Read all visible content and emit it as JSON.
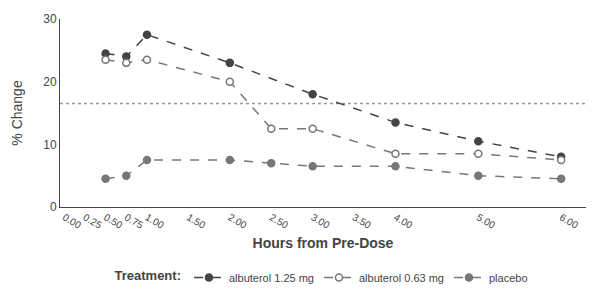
{
  "chart_data": {
    "type": "line",
    "x_label": "Hours from Pre-Dose",
    "y_label": "% Change",
    "legend_title": "Treatment:",
    "legend": "bottom",
    "grid": false,
    "series": [
      {
        "name": "albuterol 1.25 mg",
        "color": "#444444",
        "marker": "circle",
        "line_style": "dashed",
        "x": [
          0.5,
          0.75,
          1.0,
          2.0,
          3.0,
          4.0,
          5.0,
          6.0
        ],
        "values": [
          24.5,
          24.0,
          27.5,
          23.0,
          18.0,
          13.5,
          10.5,
          8.0
        ]
      },
      {
        "name": "albuterol 0.63 mg",
        "color": "#777777",
        "marker": "open circle",
        "line_style": "dashed",
        "x": [
          0.5,
          0.75,
          1.0,
          2.0,
          2.5,
          3.0,
          4.0,
          5.0,
          6.0
        ],
        "values": [
          23.5,
          23.0,
          23.5,
          20.0,
          12.5,
          12.5,
          8.5,
          8.5,
          7.5
        ]
      },
      {
        "name": "placebo",
        "color": "#777777",
        "marker": "circle",
        "line_style": "dashed",
        "x": [
          0.5,
          0.75,
          1.0,
          2.0,
          2.5,
          3.0,
          4.0,
          5.0,
          6.0
        ],
        "values": [
          4.5,
          5.0,
          7.5,
          7.5,
          7.0,
          6.5,
          6.5,
          5.0,
          4.5
        ]
      }
    ],
    "hline": {
      "y": 16.5,
      "color": "#999999",
      "line_style": "dotted"
    },
    "xlim": [
      -0.05,
      6.3
    ],
    "ylim": [
      0,
      30
    ],
    "xticks": [
      {
        "value": 0,
        "label": "0.00"
      },
      {
        "value": 0.25,
        "label": "0.25"
      },
      {
        "value": 0.5,
        "label": "0.50"
      },
      {
        "value": 0.75,
        "label": "0.75"
      },
      {
        "value": 1,
        "label": "1.00"
      },
      {
        "value": 1.5,
        "label": "1.50"
      },
      {
        "value": 2,
        "label": "2.00"
      },
      {
        "value": 2.5,
        "label": "2.50"
      },
      {
        "value": 3,
        "label": "3.00"
      },
      {
        "value": 3.5,
        "label": "3.50"
      },
      {
        "value": 4,
        "label": "4.00"
      },
      {
        "value": 5,
        "label": "5.00"
      },
      {
        "value": 6,
        "label": "6.00"
      }
    ],
    "yticks": [
      0,
      10,
      20,
      30
    ]
  }
}
